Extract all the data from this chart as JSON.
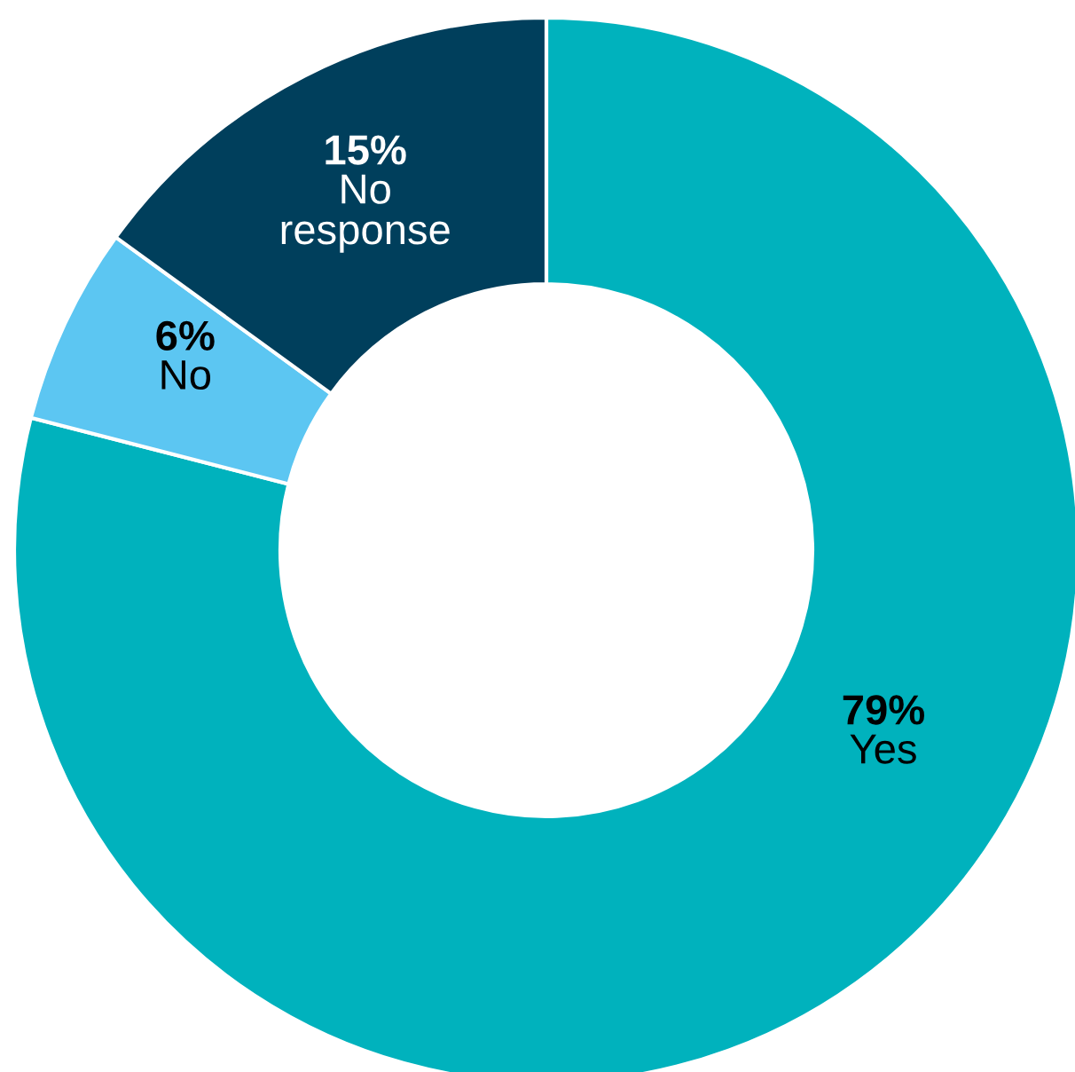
{
  "chart_data": {
    "type": "donut",
    "categories": [
      "Yes",
      "No",
      "No response"
    ],
    "values": [
      79,
      6,
      15
    ],
    "colors": [
      "#00b2bd",
      "#5cc6f2",
      "#003f5c"
    ],
    "value_labels": [
      "79%",
      "6%",
      "15%"
    ]
  }
}
